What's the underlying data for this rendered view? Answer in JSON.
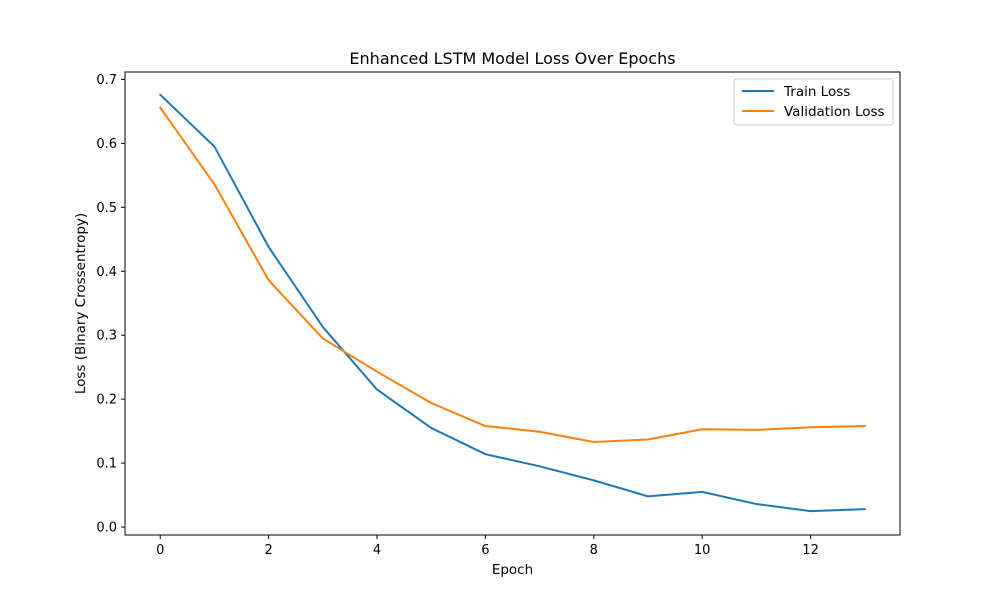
{
  "chart_data": {
    "type": "line",
    "title": "Enhanced LSTM Model Loss Over Epochs",
    "xlabel": "Epoch",
    "ylabel": "Loss (Binary Crossentropy)",
    "xlim": [
      -0.65,
      13.65
    ],
    "ylim": [
      -0.0124,
      0.7116
    ],
    "xticks": [
      0,
      2,
      4,
      6,
      8,
      10,
      12
    ],
    "xtick_labels": [
      "0",
      "2",
      "4",
      "6",
      "8",
      "10",
      "12"
    ],
    "yticks": [
      0.0,
      0.1,
      0.2,
      0.3,
      0.4,
      0.5,
      0.6,
      0.7
    ],
    "ytick_labels": [
      "0.0",
      "0.1",
      "0.2",
      "0.3",
      "0.4",
      "0.5",
      "0.6",
      "0.7"
    ],
    "grid": false,
    "legend_position": "top-right",
    "x": [
      0,
      1,
      2,
      3,
      4,
      5,
      6,
      7,
      8,
      9,
      10,
      11,
      12,
      13
    ],
    "series": [
      {
        "name": "Train Loss",
        "color": "#1f77b4",
        "values": [
          0.676,
          0.595,
          0.438,
          0.313,
          0.215,
          0.155,
          0.114,
          0.095,
          0.073,
          0.048,
          0.055,
          0.036,
          0.025,
          0.028
        ]
      },
      {
        "name": "Validation Loss",
        "color": "#ff7f0e",
        "values": [
          0.656,
          0.536,
          0.386,
          0.295,
          0.243,
          0.194,
          0.158,
          0.149,
          0.133,
          0.137,
          0.153,
          0.152,
          0.156,
          0.158
        ]
      }
    ]
  }
}
